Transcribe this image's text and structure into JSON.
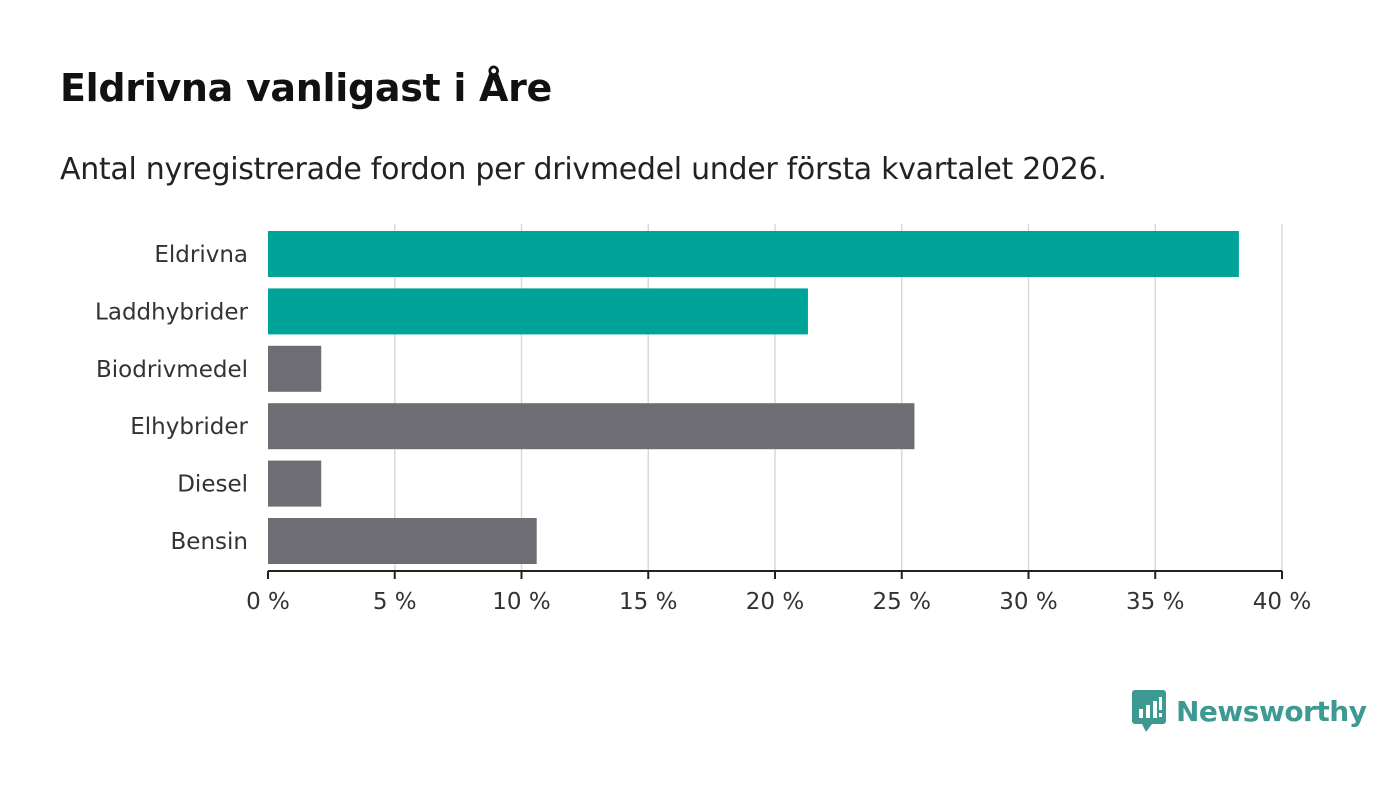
{
  "header": {
    "title": "Eldrivna vanligast i Åre",
    "subtitle": "Antal nyregistrerade fordon per drivmedel under första kvartalet 2026."
  },
  "brand": {
    "name": "Newsworthy"
  },
  "colors": {
    "highlight": "#00a398",
    "default": "#6e6d74",
    "grid": "#d9d9d9",
    "axis": "#222222",
    "brand": "#3d9a92"
  },
  "chart_data": {
    "type": "bar",
    "orientation": "horizontal",
    "title": "Eldrivna vanligast i Åre",
    "subtitle": "Antal nyregistrerade fordon per drivmedel under första kvartalet 2026.",
    "categories": [
      "Eldrivna",
      "Laddhybrider",
      "Biodrivmedel",
      "Elhybrider",
      "Diesel",
      "Bensin"
    ],
    "values": [
      38.3,
      21.3,
      2.1,
      25.5,
      2.1,
      10.6
    ],
    "highlighted": [
      true,
      true,
      false,
      false,
      false,
      false
    ],
    "unit": "%",
    "xlim": [
      0,
      40
    ],
    "xticks": [
      0,
      5,
      10,
      15,
      20,
      25,
      30,
      35,
      40
    ],
    "xtick_labels": [
      "0 %",
      "5 %",
      "10 %",
      "15 %",
      "20 %",
      "25 %",
      "30 %",
      "35 %",
      "40 %"
    ],
    "xlabel": "",
    "ylabel": "",
    "grid": true
  }
}
